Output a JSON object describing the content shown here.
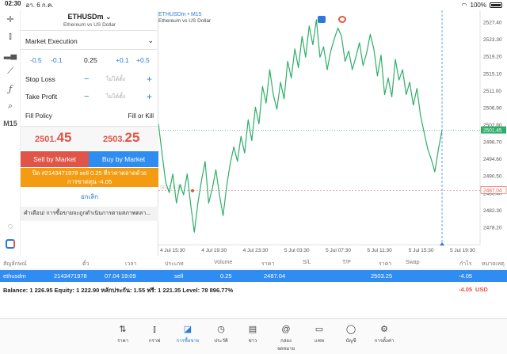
{
  "status_bar": {
    "time": "02:30",
    "date": "อา. 6 ก.ค.",
    "battery": "100%",
    "battery_level": 1.0
  },
  "left_toolbar": {
    "timeframe_label": "M15"
  },
  "order_panel": {
    "symbol": "ETHUSDm",
    "symbol_desc": "Ethereum vs US Dollar",
    "execution_mode": "Market Execution",
    "volume_steps": [
      "-0.5",
      "-0.1",
      "+0.1",
      "+0.5"
    ],
    "volume_value": "0.25",
    "stop_loss_label": "Stop Loss",
    "stop_loss_placeholder": "ไม่ได้ตั้ง",
    "take_profit_label": "Take Profit",
    "take_profit_placeholder": "ไม่ได้ตั้ง",
    "fill_policy_label": "Fill Policy",
    "fill_policy_value": "Fill or Kill",
    "bid_main": "2501.",
    "bid_big": "45",
    "ask_main": "2503.",
    "ask_big": "25",
    "sell_label": "Sell by Market",
    "buy_label": "Buy by Market",
    "warning_line1": "ปิด #2143471978 sell 0.25 ที่ราคาตลาดด้วย",
    "warning_line2": "การขาดทุน -4.05",
    "cancel_label": "ยกเลิก",
    "notice": "คำเตือน! การซื้อขายจะถูกดำเนินการตามสภาพตลา..."
  },
  "chart": {
    "title": "ETHUSDm • M15",
    "subtitle": "Ethereum vs US Dollar",
    "current_price_tag": "2501.45",
    "sell_price_tag": "2487.04",
    "sell_line_label": "SELL 0.25",
    "colors": {
      "line": "#2fae6a",
      "bid": "#2fae6a",
      "sell_line": "#e05548"
    }
  },
  "chart_data": {
    "type": "line",
    "x_tick_labels": [
      "4 Jul 15:30",
      "4 Jul 19:30",
      "4 Jul 23:30",
      "5 Jul 03:30",
      "5 Jul 07:30",
      "5 Jul 11:30",
      "5 Jul 15:30",
      "5 Jul 19:30"
    ],
    "y_tick_labels": [
      "2527.40",
      "2523.30",
      "2519.20",
      "2515.10",
      "2511.00",
      "2506.90",
      "2502.80",
      "2498.70",
      "2494.60",
      "2490.50",
      "2486.40",
      "2482.30",
      "2478.20"
    ],
    "ylim": [
      2474.0,
      2529.5
    ],
    "series": [
      {
        "values": [
          2503.0,
          2496.0,
          2489.0,
          2486.5,
          2491.0,
          2484.0,
          2488.5,
          2486.0,
          2491.0,
          2483.5,
          2477.0,
          2484.0,
          2489.5,
          2494.0,
          2484.0,
          2487.5,
          2492.0,
          2486.0,
          2481.0,
          2488.0,
          2493.5,
          2497.5,
          2494.0,
          2500.0,
          2496.0,
          2504.0,
          2499.0,
          2507.0,
          2503.0,
          2512.0,
          2508.0,
          2516.0,
          2510.0,
          2506.5,
          2513.0,
          2509.0,
          2518.0,
          2514.0,
          2521.0,
          2516.5,
          2524.0,
          2519.0,
          2526.5,
          2522.0,
          2528.0,
          2519.0,
          2521.5,
          2516.0,
          2520.5,
          2523.5,
          2526.0,
          2524.0,
          2518.0,
          2520.5,
          2516.0,
          2519.0,
          2522.5,
          2517.0,
          2520.0,
          2524.5,
          2521.0,
          2514.5,
          2519.5,
          2510.0,
          2514.0,
          2509.5,
          2518.5,
          2513.5,
          2516.0,
          2510.0,
          2513.0,
          2507.5,
          2511.5,
          2505.0,
          2501.0,
          2497.0,
          2494.5,
          2491.5,
          2497.0,
          2501.5
        ]
      }
    ],
    "bid_price": 2501.45,
    "sell_price": 2487.04
  },
  "positions_table": {
    "headers": [
      "สัญลักษณ์",
      "ตั๋ว",
      "เวลา",
      "ประเภท",
      "Volume",
      "ราคา",
      "S/L",
      "T/P",
      "ราคา",
      "Swap",
      "กำไร",
      "หมายเหตุ"
    ],
    "row": {
      "symbol": "ethusdm",
      "ticket": "2143471978",
      "time": "07.04 19:09",
      "type": "sell",
      "volume": "0.25",
      "price": "2487.04",
      "current": "2503.25",
      "profit": "-4.05"
    }
  },
  "balance_bar": {
    "text": "Balance: 1 226.95 Equity: 1 222.90 หลักประกัน: 1.55 ฟรี: 1 221.35 Level: 78 896.77%",
    "profit": "-4.05",
    "currency": "USD"
  },
  "tabbar": [
    {
      "label": "ราคา"
    },
    {
      "label": "กราฟ"
    },
    {
      "label": "การซื้อขาย"
    },
    {
      "label": "ประวัติ"
    },
    {
      "label": "ข่าว"
    },
    {
      "label": "กล่องจดหมาย"
    },
    {
      "label": "แชท"
    },
    {
      "label": "บัญชี"
    },
    {
      "label": "การตั้งค่า"
    }
  ]
}
